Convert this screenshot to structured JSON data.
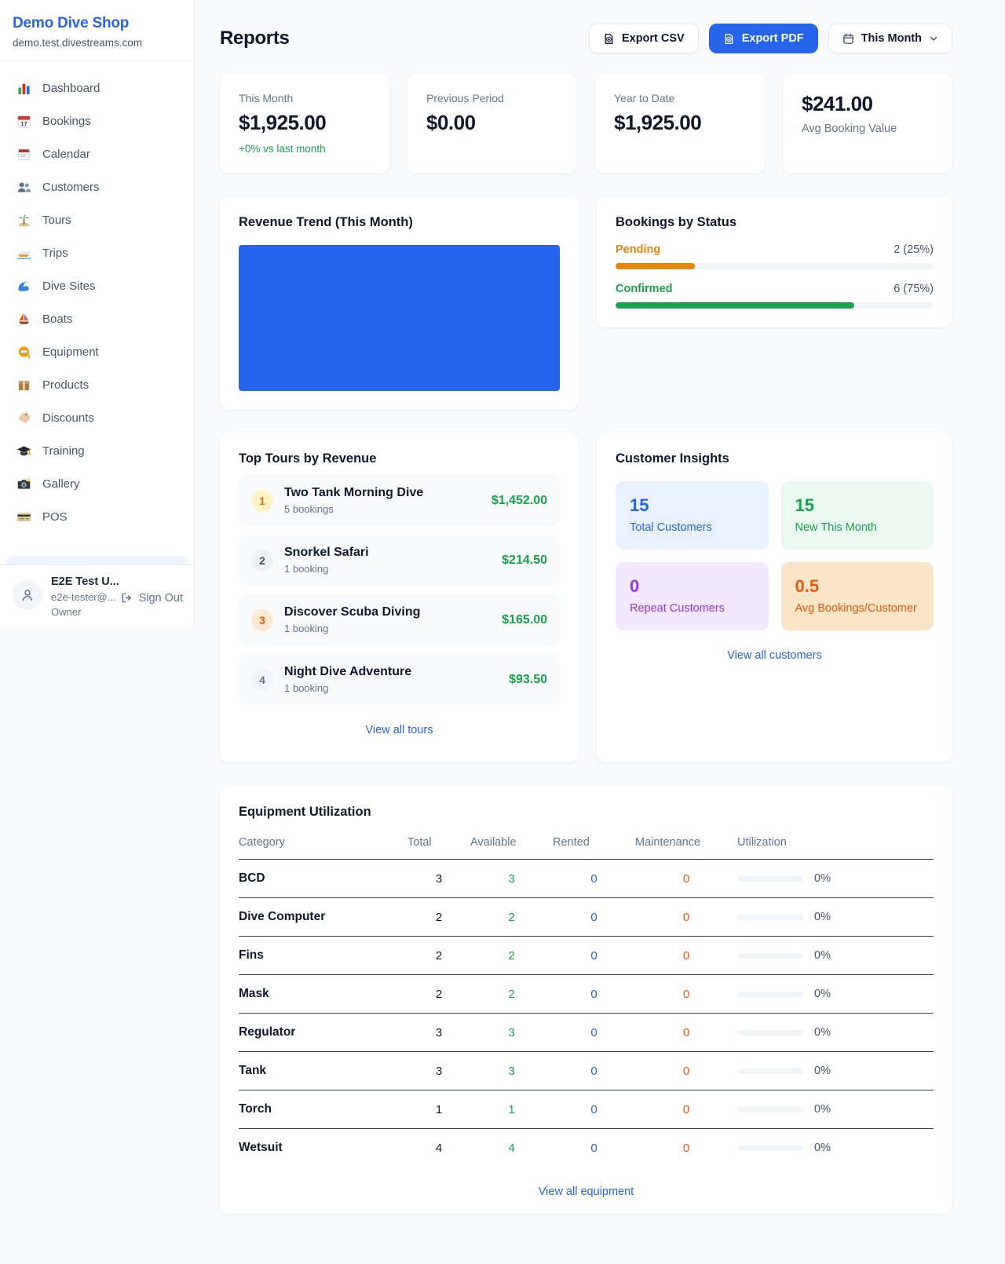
{
  "colors": {
    "brand_blue": "#2563eb",
    "green": "#16a34a",
    "pending_orange": "#e8860d",
    "maintenance_orange": "#ea580c",
    "chart_blue": "#2563eb"
  },
  "sidebar": {
    "shop_name": "Demo Dive Shop",
    "shop_domain": "demo.test.divestreams.com",
    "items": [
      {
        "icon": "bar-chart",
        "label": "Dashboard"
      },
      {
        "icon": "calendar-date",
        "label": "Bookings"
      },
      {
        "icon": "calendar-pad",
        "label": "Calendar"
      },
      {
        "icon": "users",
        "label": "Customers"
      },
      {
        "icon": "island",
        "label": "Tours"
      },
      {
        "icon": "speedboat",
        "label": "Trips"
      },
      {
        "icon": "wave",
        "label": "Dive Sites"
      },
      {
        "icon": "sailboat",
        "label": "Boats"
      },
      {
        "icon": "diving-mask",
        "label": "Equipment"
      },
      {
        "icon": "package",
        "label": "Products"
      },
      {
        "icon": "label-tag",
        "label": "Discounts"
      },
      {
        "icon": "graduation-cap",
        "label": "Training"
      },
      {
        "icon": "camera",
        "label": "Gallery"
      },
      {
        "icon": "credit-card",
        "label": "POS"
      }
    ],
    "user": {
      "name": "E2E Test U...",
      "email": "e2e-tester@...",
      "role": "Owner",
      "sign_out_label": "Sign Out"
    }
  },
  "header": {
    "title": "Reports",
    "export_csv_label": "Export CSV",
    "export_pdf_label": "Export PDF",
    "period_label": "This Month"
  },
  "stats": [
    {
      "label": "This Month",
      "value": "$1,925.00",
      "delta": "+0% vs last month"
    },
    {
      "label": "Previous Period",
      "value": "$0.00"
    },
    {
      "label": "Year to Date",
      "value": "$1,925.00"
    },
    {
      "label": "Avg Booking Value",
      "value": "$241.00",
      "value_first": true
    }
  ],
  "revenue_trend": {
    "title": "Revenue Trend (This Month)"
  },
  "bookings_by_status": {
    "title": "Bookings by Status",
    "rows": [
      {
        "label": "Pending",
        "count_text": "2 (25%)",
        "percent": 25,
        "color": "#e8860d"
      },
      {
        "label": "Confirmed",
        "count_text": "6 (75%)",
        "percent": 75,
        "color": "#16a34a"
      }
    ]
  },
  "top_tours": {
    "title": "Top Tours by Revenue",
    "view_all_label": "View all tours",
    "rows": [
      {
        "rank": "1",
        "name": "Two Tank Morning Dive",
        "bookings": "5 bookings",
        "amount": "$1,452.00",
        "rank_bg": "#fef3c7",
        "rank_color": "#d97706"
      },
      {
        "rank": "2",
        "name": "Snorkel Safari",
        "bookings": "1 booking",
        "amount": "$214.50",
        "rank_bg": "#eef1f4",
        "rank_color": "#475569"
      },
      {
        "rank": "3",
        "name": "Discover Scuba Diving",
        "bookings": "1 booking",
        "amount": "$165.00",
        "rank_bg": "#ffe8d4",
        "rank_color": "#ea580c"
      },
      {
        "rank": "4",
        "name": "Night Dive Adventure",
        "bookings": "1 booking",
        "amount": "$93.50",
        "rank_bg": "#f1f4f8",
        "rank_color": "#64748b"
      }
    ]
  },
  "customer_insights": {
    "title": "Customer Insights",
    "view_all_label": "View all customers",
    "tiles": [
      {
        "value": "15",
        "label": "Total Customers",
        "color": "#2563eb",
        "bg": "#e8f1fe"
      },
      {
        "value": "15",
        "label": "New This Month",
        "color": "#16a34a",
        "bg": "#e9f9ef"
      },
      {
        "value": "0",
        "label": "Repeat Customers",
        "color": "#9333ea",
        "bg": "#f3e8ff"
      },
      {
        "value": "0.5",
        "label": "Avg Bookings/Customer",
        "color": "#ea580c",
        "bg": "#fbe5c8"
      }
    ]
  },
  "equipment": {
    "title": "Equipment Utilization",
    "view_all_label": "View all equipment",
    "columns": [
      "Category",
      "Total",
      "Available",
      "Rented",
      "Maintenance",
      "Utilization"
    ],
    "rows": [
      {
        "category": "BCD",
        "total": "3",
        "available": "3",
        "rented": "0",
        "maintenance": "0",
        "utilization": "0%",
        "utilization_pct": 0
      },
      {
        "category": "Dive Computer",
        "total": "2",
        "available": "2",
        "rented": "0",
        "maintenance": "0",
        "utilization": "0%",
        "utilization_pct": 0
      },
      {
        "category": "Fins",
        "total": "2",
        "available": "2",
        "rented": "0",
        "maintenance": "0",
        "utilization": "0%",
        "utilization_pct": 0
      },
      {
        "category": "Mask",
        "total": "2",
        "available": "2",
        "rented": "0",
        "maintenance": "0",
        "utilization": "0%",
        "utilization_pct": 0
      },
      {
        "category": "Regulator",
        "total": "3",
        "available": "3",
        "rented": "0",
        "maintenance": "0",
        "utilization": "0%",
        "utilization_pct": 0
      },
      {
        "category": "Tank",
        "total": "3",
        "available": "3",
        "rented": "0",
        "maintenance": "0",
        "utilization": "0%",
        "utilization_pct": 0
      },
      {
        "category": "Torch",
        "total": "1",
        "available": "1",
        "rented": "0",
        "maintenance": "0",
        "utilization": "0%",
        "utilization_pct": 0
      },
      {
        "category": "Wetsuit",
        "total": "4",
        "available": "4",
        "rented": "0",
        "maintenance": "0",
        "utilization": "0%",
        "utilization_pct": 0
      }
    ]
  }
}
